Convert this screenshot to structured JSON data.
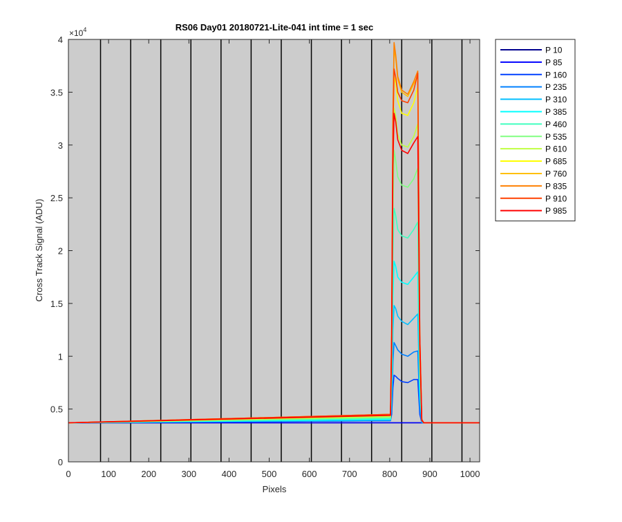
{
  "chart_data": {
    "type": "line",
    "title": "RS06 Day01 20180721-Lite-041 int time = 1 sec",
    "xlabel": "Pixels",
    "ylabel": "Cross Track Signal (ADU)",
    "y_exponent_label": "×10",
    "y_exponent_power": "4",
    "xlim": [
      0,
      1024
    ],
    "ylim": [
      0,
      4
    ],
    "y_scale_factor": 10000,
    "xticks": [
      0,
      100,
      200,
      300,
      400,
      500,
      600,
      700,
      800,
      900,
      1000
    ],
    "xtick_labels": [
      "0",
      "100",
      "200",
      "300",
      "400",
      "500",
      "600",
      "700",
      "800",
      "900",
      "1000"
    ],
    "yticks": [
      0,
      0.5,
      1,
      1.5,
      2,
      2.5,
      3,
      3.5,
      4
    ],
    "ytick_labels": [
      "0",
      "0.5",
      "1",
      "1.5",
      "2",
      "2.5",
      "3",
      "3.5",
      "4"
    ],
    "vertical_lines_x": [
      80,
      155,
      230,
      305,
      380,
      455,
      530,
      605,
      680,
      755,
      830,
      905,
      980
    ],
    "plot_background": "#cccccc",
    "legend_position": "outside-right-top",
    "baseline": 0.37,
    "x": [
      0,
      802,
      805,
      808,
      811,
      815,
      820,
      830,
      845,
      860,
      870,
      875,
      880,
      885,
      1024
    ],
    "series": [
      {
        "name": "P 10",
        "color": "#00008f",
        "y": [
          0.37,
          0.37,
          0.37,
          0.37,
          0.37,
          0.37,
          0.37,
          0.37,
          0.37,
          0.37,
          0.37,
          0.37,
          0.37,
          0.37,
          0.37
        ]
      },
      {
        "name": "P 85",
        "color": "#0000ff",
        "y": [
          0.37,
          0.37,
          0.37,
          0.37,
          0.37,
          0.37,
          0.37,
          0.37,
          0.37,
          0.37,
          0.37,
          0.37,
          0.37,
          0.37,
          0.37
        ]
      },
      {
        "name": "P 160",
        "color": "#0040ff",
        "y": [
          0.37,
          0.39,
          0.45,
          0.7,
          0.82,
          0.81,
          0.79,
          0.76,
          0.75,
          0.78,
          0.78,
          0.45,
          0.37,
          0.37,
          0.37
        ]
      },
      {
        "name": "P 235",
        "color": "#0080ff",
        "y": [
          0.37,
          0.39,
          0.5,
          0.95,
          1.13,
          1.1,
          1.06,
          1.02,
          1.0,
          1.04,
          1.05,
          0.5,
          0.37,
          0.37,
          0.37
        ]
      },
      {
        "name": "P 310",
        "color": "#00bfff",
        "y": [
          0.37,
          0.4,
          0.6,
          1.25,
          1.48,
          1.45,
          1.38,
          1.33,
          1.3,
          1.36,
          1.4,
          0.6,
          0.38,
          0.37,
          0.37
        ]
      },
      {
        "name": "P 385",
        "color": "#00ffff",
        "y": [
          0.37,
          0.4,
          0.7,
          1.55,
          1.9,
          1.85,
          1.75,
          1.7,
          1.68,
          1.75,
          1.8,
          0.7,
          0.38,
          0.37,
          0.37
        ]
      },
      {
        "name": "P 460",
        "color": "#40ffbf",
        "y": [
          0.37,
          0.41,
          0.8,
          1.95,
          2.4,
          2.33,
          2.2,
          2.14,
          2.12,
          2.2,
          2.27,
          0.8,
          0.39,
          0.37,
          0.37
        ]
      },
      {
        "name": "P 535",
        "color": "#80ff80",
        "y": [
          0.37,
          0.42,
          0.9,
          2.35,
          2.95,
          2.85,
          2.7,
          2.62,
          2.6,
          2.68,
          2.78,
          0.9,
          0.39,
          0.37,
          0.37
        ]
      },
      {
        "name": "P 610",
        "color": "#bfff40",
        "y": [
          0.37,
          0.43,
          1.0,
          2.7,
          3.35,
          3.28,
          3.1,
          3.0,
          2.98,
          3.08,
          3.2,
          1.0,
          0.4,
          0.37,
          0.37
        ]
      },
      {
        "name": "P 685",
        "color": "#ffff00",
        "y": [
          0.37,
          0.44,
          1.1,
          3.0,
          3.65,
          3.58,
          3.42,
          3.3,
          3.28,
          3.4,
          3.55,
          1.1,
          0.4,
          0.37,
          0.37
        ]
      },
      {
        "name": "P 760",
        "color": "#ffbf00",
        "y": [
          0.37,
          0.45,
          1.2,
          3.2,
          3.92,
          3.82,
          3.62,
          3.5,
          3.46,
          3.58,
          3.65,
          1.2,
          0.4,
          0.37,
          0.37
        ]
      },
      {
        "name": "P 835",
        "color": "#ff8000",
        "y": [
          0.37,
          0.45,
          1.2,
          3.25,
          3.97,
          3.85,
          3.65,
          3.52,
          3.48,
          3.6,
          3.7,
          1.2,
          0.4,
          0.37,
          0.37
        ]
      },
      {
        "name": "P 910",
        "color": "#ff4000",
        "y": [
          0.37,
          0.45,
          1.2,
          3.1,
          3.72,
          3.64,
          3.5,
          3.42,
          3.4,
          3.52,
          3.68,
          1.2,
          0.4,
          0.37,
          0.37
        ]
      },
      {
        "name": "P 985",
        "color": "#ff0000",
        "y": [
          0.37,
          0.44,
          1.1,
          2.8,
          3.3,
          3.22,
          3.05,
          2.95,
          2.92,
          3.02,
          3.08,
          1.1,
          0.39,
          0.37,
          0.37
        ]
      }
    ]
  }
}
